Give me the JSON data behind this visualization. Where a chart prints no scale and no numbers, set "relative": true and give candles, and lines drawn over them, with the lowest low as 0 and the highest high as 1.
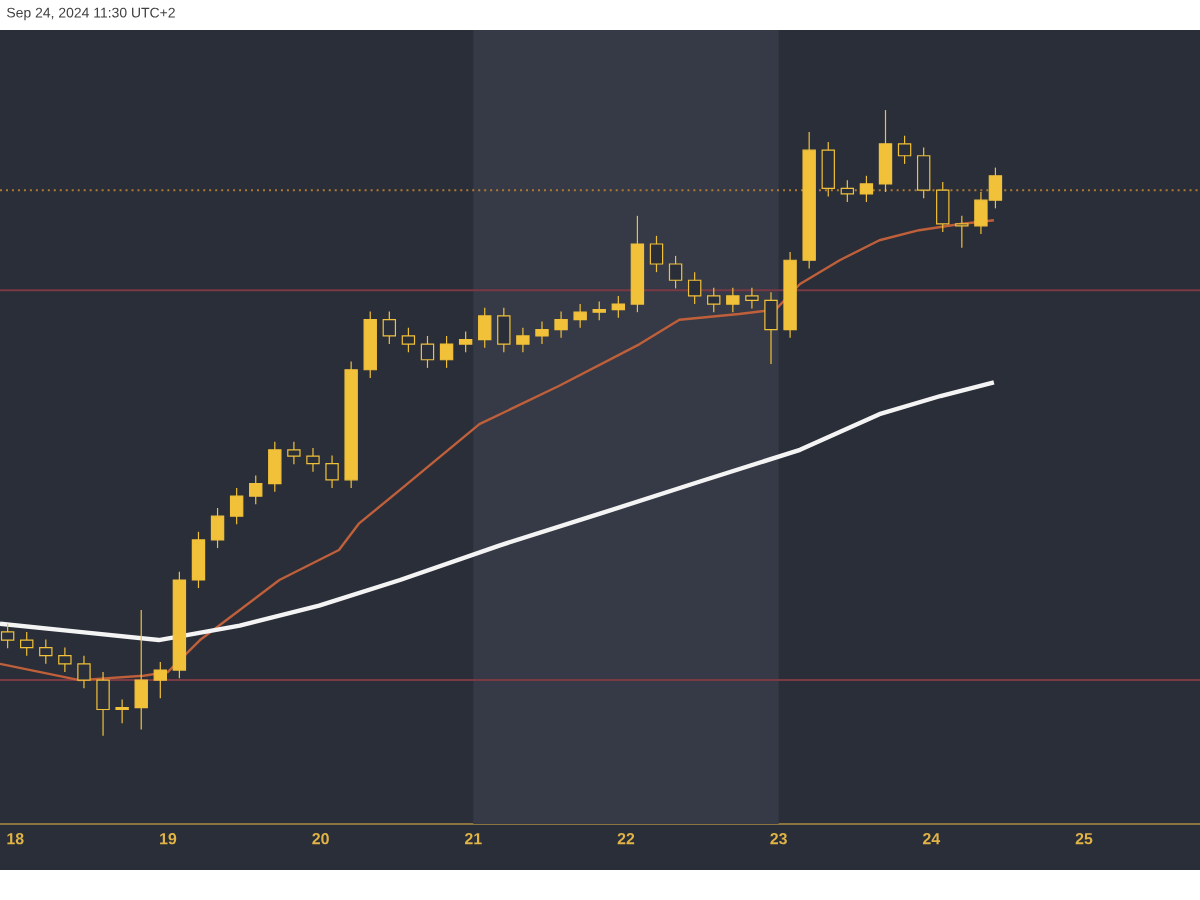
{
  "chart_data": {
    "type": "candlestick",
    "relative": true,
    "color": "#f2c13a",
    "tick_labels": "x",
    "grid": false,
    "annotations": [
      "Sep 24, 2024 11:30 UTC+2"
    ],
    "xlim": [
      17.9,
      25.76
    ],
    "xticks": [
      18,
      19,
      20,
      21,
      22,
      23,
      24,
      25
    ],
    "x": [
      17.95,
      18.075,
      18.2,
      18.325,
      18.45,
      18.575,
      18.7,
      18.825,
      18.95,
      19.075,
      19.2,
      19.325,
      19.45,
      19.575,
      19.7,
      19.825,
      19.95,
      20.075,
      20.2,
      20.325,
      20.45,
      20.575,
      20.7,
      20.825,
      20.95,
      21.075,
      21.2,
      21.325,
      21.45,
      21.575,
      21.7,
      21.825,
      21.95,
      22.075,
      22.2,
      22.325,
      22.45,
      22.575,
      22.7,
      22.825,
      22.95,
      23.075,
      23.2,
      23.325,
      23.45,
      23.575,
      23.7,
      23.825,
      23.95,
      24.075,
      24.2,
      24.325,
      24.42
    ],
    "ohlc": [
      [
        0.166,
        0.179,
        0.14,
        0.153
      ],
      [
        0.153,
        0.166,
        0.128,
        0.141
      ],
      [
        0.141,
        0.154,
        0.115,
        0.128
      ],
      [
        0.128,
        0.141,
        0.102,
        0.115
      ],
      [
        0.115,
        0.128,
        0.076,
        0.089
      ],
      [
        0.089,
        0.102,
        0,
        0.042
      ],
      [
        0.042,
        0.058,
        0.02,
        0.045
      ],
      [
        0.045,
        0.201,
        0.01,
        0.089
      ],
      [
        0.089,
        0.118,
        0.06,
        0.105
      ],
      [
        0.105,
        0.262,
        0.092,
        0.249
      ],
      [
        0.249,
        0.326,
        0.236,
        0.313
      ],
      [
        0.313,
        0.364,
        0.3,
        0.351
      ],
      [
        0.351,
        0.396,
        0.338,
        0.383
      ],
      [
        0.383,
        0.416,
        0.37,
        0.403
      ],
      [
        0.403,
        0.47,
        0.39,
        0.457
      ],
      [
        0.457,
        0.47,
        0.434,
        0.447
      ],
      [
        0.447,
        0.46,
        0.422,
        0.435
      ],
      [
        0.435,
        0.448,
        0.396,
        0.409
      ],
      [
        0.409,
        0.598,
        0.396,
        0.585
      ],
      [
        0.585,
        0.678,
        0.572,
        0.665
      ],
      [
        0.665,
        0.678,
        0.626,
        0.639
      ],
      [
        0.639,
        0.652,
        0.613,
        0.626
      ],
      [
        0.626,
        0.639,
        0.588,
        0.601
      ],
      [
        0.601,
        0.639,
        0.588,
        0.626
      ],
      [
        0.626,
        0.646,
        0.613,
        0.633
      ],
      [
        0.633,
        0.684,
        0.62,
        0.671
      ],
      [
        0.671,
        0.684,
        0.613,
        0.626
      ],
      [
        0.626,
        0.652,
        0.613,
        0.639
      ],
      [
        0.639,
        0.662,
        0.626,
        0.649
      ],
      [
        0.649,
        0.678,
        0.636,
        0.665
      ],
      [
        0.665,
        0.69,
        0.652,
        0.677
      ],
      [
        0.677,
        0.694,
        0.664,
        0.681
      ],
      [
        0.681,
        0.703,
        0.668,
        0.69
      ],
      [
        0.69,
        0.831,
        0.677,
        0.786
      ],
      [
        0.786,
        0.799,
        0.741,
        0.754
      ],
      [
        0.754,
        0.767,
        0.715,
        0.728
      ],
      [
        0.728,
        0.741,
        0.69,
        0.703
      ],
      [
        0.703,
        0.716,
        0.677,
        0.69
      ],
      [
        0.69,
        0.716,
        0.677,
        0.703
      ],
      [
        0.703,
        0.716,
        0.683,
        0.696
      ],
      [
        0.696,
        0.709,
        0.594,
        0.649
      ],
      [
        0.649,
        0.773,
        0.636,
        0.76
      ],
      [
        0.76,
        0.965,
        0.747,
        0.936
      ],
      [
        0.936,
        0.949,
        0.862,
        0.875
      ],
      [
        0.875,
        0.888,
        0.853,
        0.866
      ],
      [
        0.866,
        0.895,
        0.853,
        0.882
      ],
      [
        0.882,
        1,
        0.869,
        0.946
      ],
      [
        0.946,
        0.959,
        0.914,
        0.927
      ],
      [
        0.927,
        0.94,
        0.859,
        0.872
      ],
      [
        0.872,
        0.885,
        0.805,
        0.818
      ],
      [
        0.818,
        0.831,
        0.78,
        0.815
      ],
      [
        0.815,
        0.869,
        0.802,
        0.856
      ],
      [
        0.856,
        0.908,
        0.843,
        0.895
      ]
    ],
    "series": [
      {
        "type": "line",
        "color": "#c0603a",
        "x": [
          17.9,
          18.42,
          18.84,
          19.0,
          19.21,
          19.73,
          20.12,
          20.25,
          20.52,
          21.04,
          21.56,
          22.09,
          22.35,
          22.74,
          22.98,
          23.14,
          23.4,
          23.66,
          23.92,
          24.19,
          24.41
        ],
        "values": [
          0.115,
          0.089,
          0.096,
          0.102,
          0.153,
          0.249,
          0.297,
          0.339,
          0.393,
          0.498,
          0.559,
          0.626,
          0.665,
          0.674,
          0.681,
          0.722,
          0.76,
          0.792,
          0.808,
          0.818,
          0.824
        ]
      },
      {
        "type": "line",
        "color": "#f4f4f4",
        "x": [
          17.9,
          18.42,
          18.94,
          19.47,
          19.99,
          20.52,
          21.17,
          21.83,
          22.48,
          23.14,
          23.66,
          24.06,
          24.41
        ],
        "values": [
          0.179,
          0.166,
          0.153,
          0.176,
          0.208,
          0.249,
          0.304,
          0.355,
          0.406,
          0.457,
          0.514,
          0.543,
          0.565
        ]
      }
    ],
    "ref_lines": [
      {
        "axis": "y",
        "value": 0.089,
        "color": "#7a3a44",
        "line_style": "solid"
      },
      {
        "axis": "y",
        "value": 0.712,
        "color": "#7a3a44",
        "line_style": "solid"
      },
      {
        "axis": "y",
        "value": 0.872,
        "color": "#b07a30",
        "line_style": "dotted"
      }
    ],
    "bands": [
      {
        "axis": "x",
        "from": 21,
        "to": 23,
        "color": "#363a46"
      }
    ]
  }
}
